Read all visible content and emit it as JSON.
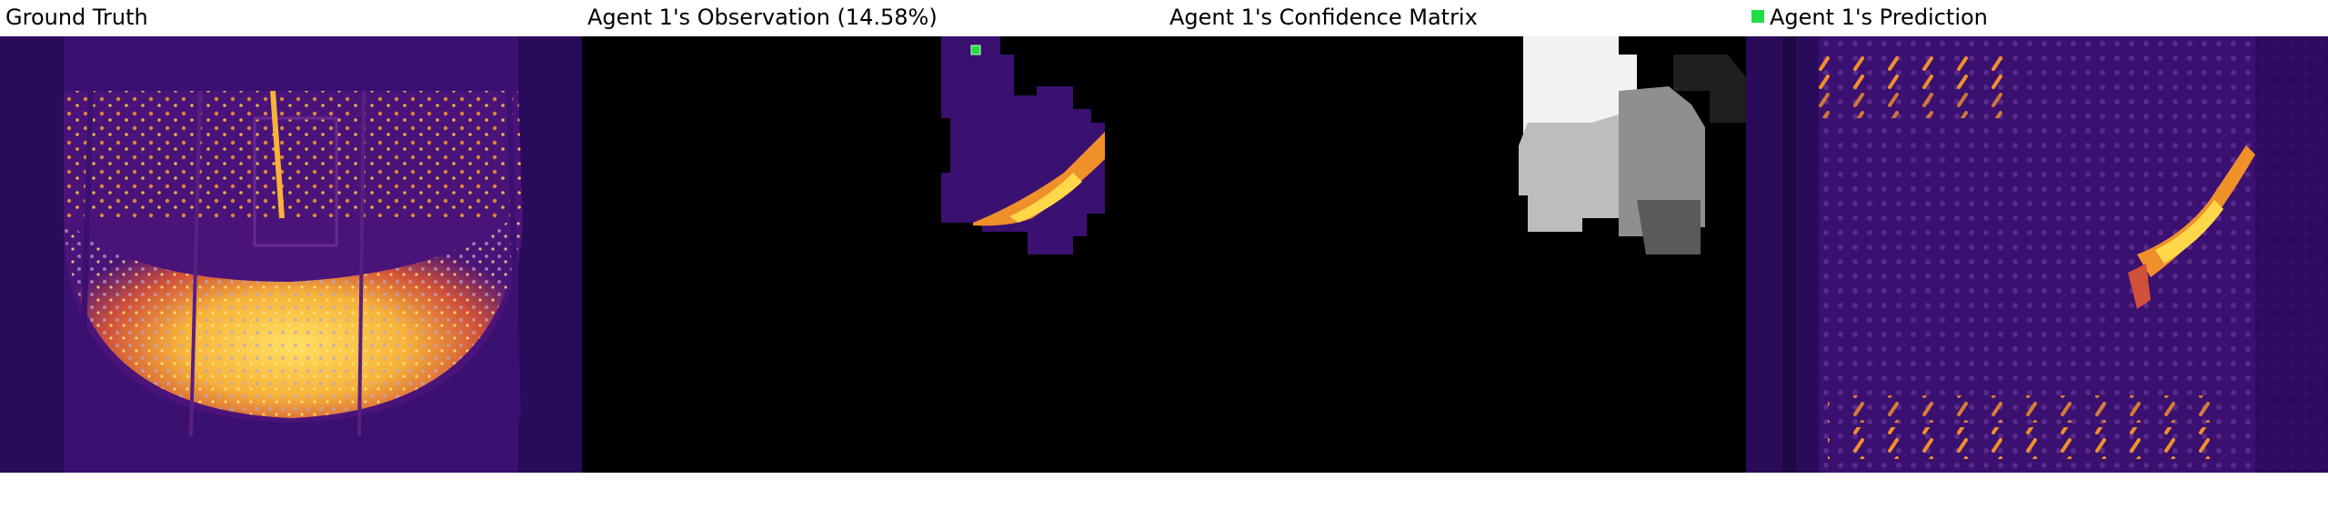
{
  "panels": [
    {
      "title": "Ground Truth"
    },
    {
      "title": "Agent 1's Observation (14.58%)"
    },
    {
      "title": "Agent 1's Confidence Matrix"
    },
    {
      "title": "Agent 1's Prediction"
    }
  ],
  "legend": {
    "color": "#22dd44"
  },
  "colors": {
    "background_purple": "#3a1070",
    "dark_purple": "#1d0a45",
    "hot_orange": "#f0902a",
    "hot_yellow": "#ffd84a",
    "black": "#000000",
    "marker_green": "#22dd44"
  }
}
